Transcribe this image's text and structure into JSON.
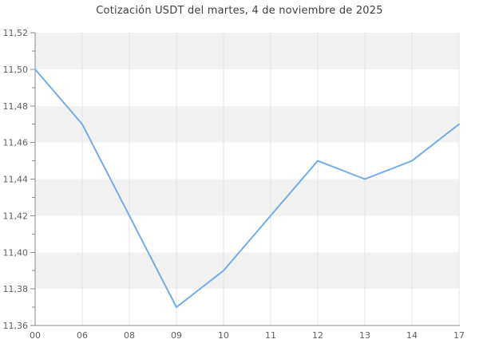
{
  "chart_data": {
    "type": "line",
    "title": "Cotización USDT del martes, 4 de noviembre de 2025",
    "x_labels": [
      "00",
      "06",
      "08",
      "09",
      "10",
      "11",
      "12",
      "13",
      "14",
      "17"
    ],
    "series": [
      {
        "name": "USDT",
        "values": [
          11.5,
          11.47,
          11.42,
          11.37,
          11.39,
          11.42,
          11.45,
          11.44,
          11.45,
          11.47
        ]
      }
    ],
    "ylim": [
      11.36,
      11.52
    ],
    "y_major_step": 0.02,
    "y_minor_step": 0.01,
    "y_tick_labels": [
      "11,36",
      "11,38",
      "11,40",
      "11,42",
      "11,44",
      "11,46",
      "11,48",
      "11,50",
      "11,52"
    ],
    "grid": "vertical",
    "alternate_bands": true,
    "legend": "none"
  },
  "colors": {
    "line": "#74abe8",
    "band": "#f2f2f2",
    "grid": "#e4e4e4",
    "axis": "#888888",
    "tick": "#8a8a8a",
    "tick_label": "#5f5f5f",
    "title": "#3f3f3f",
    "background": "#ffffff"
  }
}
